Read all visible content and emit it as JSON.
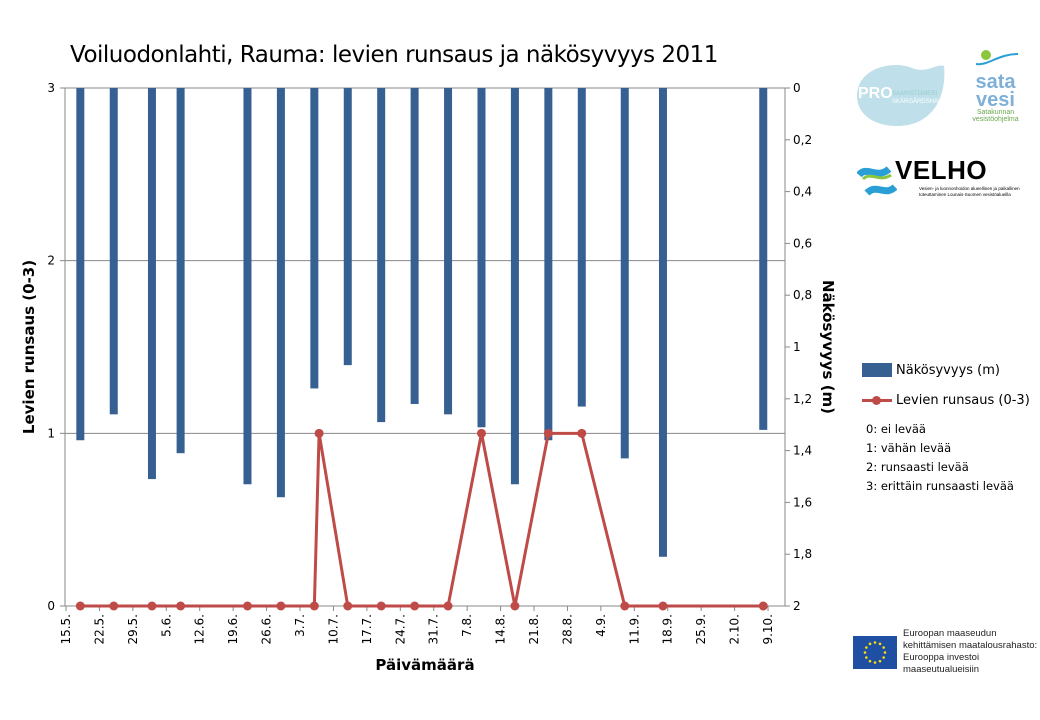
{
  "chart_data": {
    "type": "bar+line",
    "title": "Voiluodonlahti, Rauma: levien runsaus ja näkösyvyys 2011",
    "xlabel": "Päivämäärä",
    "ylabel_left": "Levien runsaus (0-3)",
    "ylabel_right": "Näkösyvyys (m)",
    "ylim_left": [
      0,
      3
    ],
    "ylim_right": [
      0,
      2
    ],
    "right_axis_reversed": true,
    "yticks_left": [
      "0",
      "1",
      "2",
      "3"
    ],
    "yticks_right": [
      "0",
      "0,2",
      "0,4",
      "0,6",
      "0,8",
      "1",
      "1,2",
      "1,4",
      "1,6",
      "1,8",
      "2"
    ],
    "xticks": [
      "15.5.",
      "22.5.",
      "29.5.",
      "5.6.",
      "12.6.",
      "19.6.",
      "26.6.",
      "3.7.",
      "10.7.",
      "17.7.",
      "24.7.",
      "31.7.",
      "7.8.",
      "14.8.",
      "21.8.",
      "28.8.",
      "4.9.",
      "11.9.",
      "18.9.",
      "25.9.",
      "2.10.",
      "9.10."
    ],
    "grid": true,
    "legend_position": "right",
    "series": [
      {
        "name": "Näkösyvyys (m)",
        "type": "bar",
        "color": "#376092",
        "points": [
          [
            "18.5.",
            1.36
          ],
          [
            "25.5.",
            1.26
          ],
          [
            "2.6.",
            1.51
          ],
          [
            "8.6.",
            1.41
          ],
          [
            "22.6.",
            1.53
          ],
          [
            "29.6.",
            1.58
          ],
          [
            "6.7.",
            1.16
          ],
          [
            "13.7.",
            1.07
          ],
          [
            "20.7.",
            1.29
          ],
          [
            "27.7.",
            1.22
          ],
          [
            "3.8.",
            1.26
          ],
          [
            "10.8.",
            1.31
          ],
          [
            "17.8.",
            1.53
          ],
          [
            "24.8.",
            1.36
          ],
          [
            "31.8.",
            1.23
          ],
          [
            "9.9.",
            1.43
          ],
          [
            "17.9.",
            1.81
          ],
          [
            "8.10.",
            1.32
          ]
        ]
      },
      {
        "name": "Levien runsaus (0-3)",
        "type": "line",
        "color": "#be4b48",
        "points": [
          [
            "18.5.",
            0
          ],
          [
            "25.5.",
            0
          ],
          [
            "2.6.",
            0
          ],
          [
            "8.6.",
            0
          ],
          [
            "22.6.",
            0
          ],
          [
            "29.6.",
            0
          ],
          [
            "6.7.",
            0
          ],
          [
            "7.7.",
            1
          ],
          [
            "13.7.",
            0
          ],
          [
            "20.7.",
            0
          ],
          [
            "27.7.",
            0
          ],
          [
            "3.8.",
            0
          ],
          [
            "10.8.",
            1
          ],
          [
            "17.8.",
            0
          ],
          [
            "24.8.",
            1
          ],
          [
            "31.8.",
            1
          ],
          [
            "9.9.",
            0
          ],
          [
            "17.9.",
            0
          ],
          [
            "8.10.",
            0
          ]
        ]
      }
    ],
    "annotations": [
      "0: ei levää",
      "1: vähän levää",
      "2: runsaasti levää",
      "3: erittäin runsaasti levää"
    ]
  },
  "logos": {
    "pro": "PRO SAARISTOMERI SKÄRGÅRDSHAVET",
    "sata_1": "sata",
    "sata_2": "vesi",
    "sata_sub": "Satakunnan vesistöohjelma",
    "velho": "VELHO",
    "velho_sub": "Vesien- ja luonnonhoidon alueellinen ja paikallinen toteuttaminen Lounais-Suomen vesistöalueilla",
    "eu_1": "Euroopan maaseudun",
    "eu_2": "kehittämisen maatalousrahasto:",
    "eu_3": "Eurooppa investoi maaseutualueisiin"
  }
}
